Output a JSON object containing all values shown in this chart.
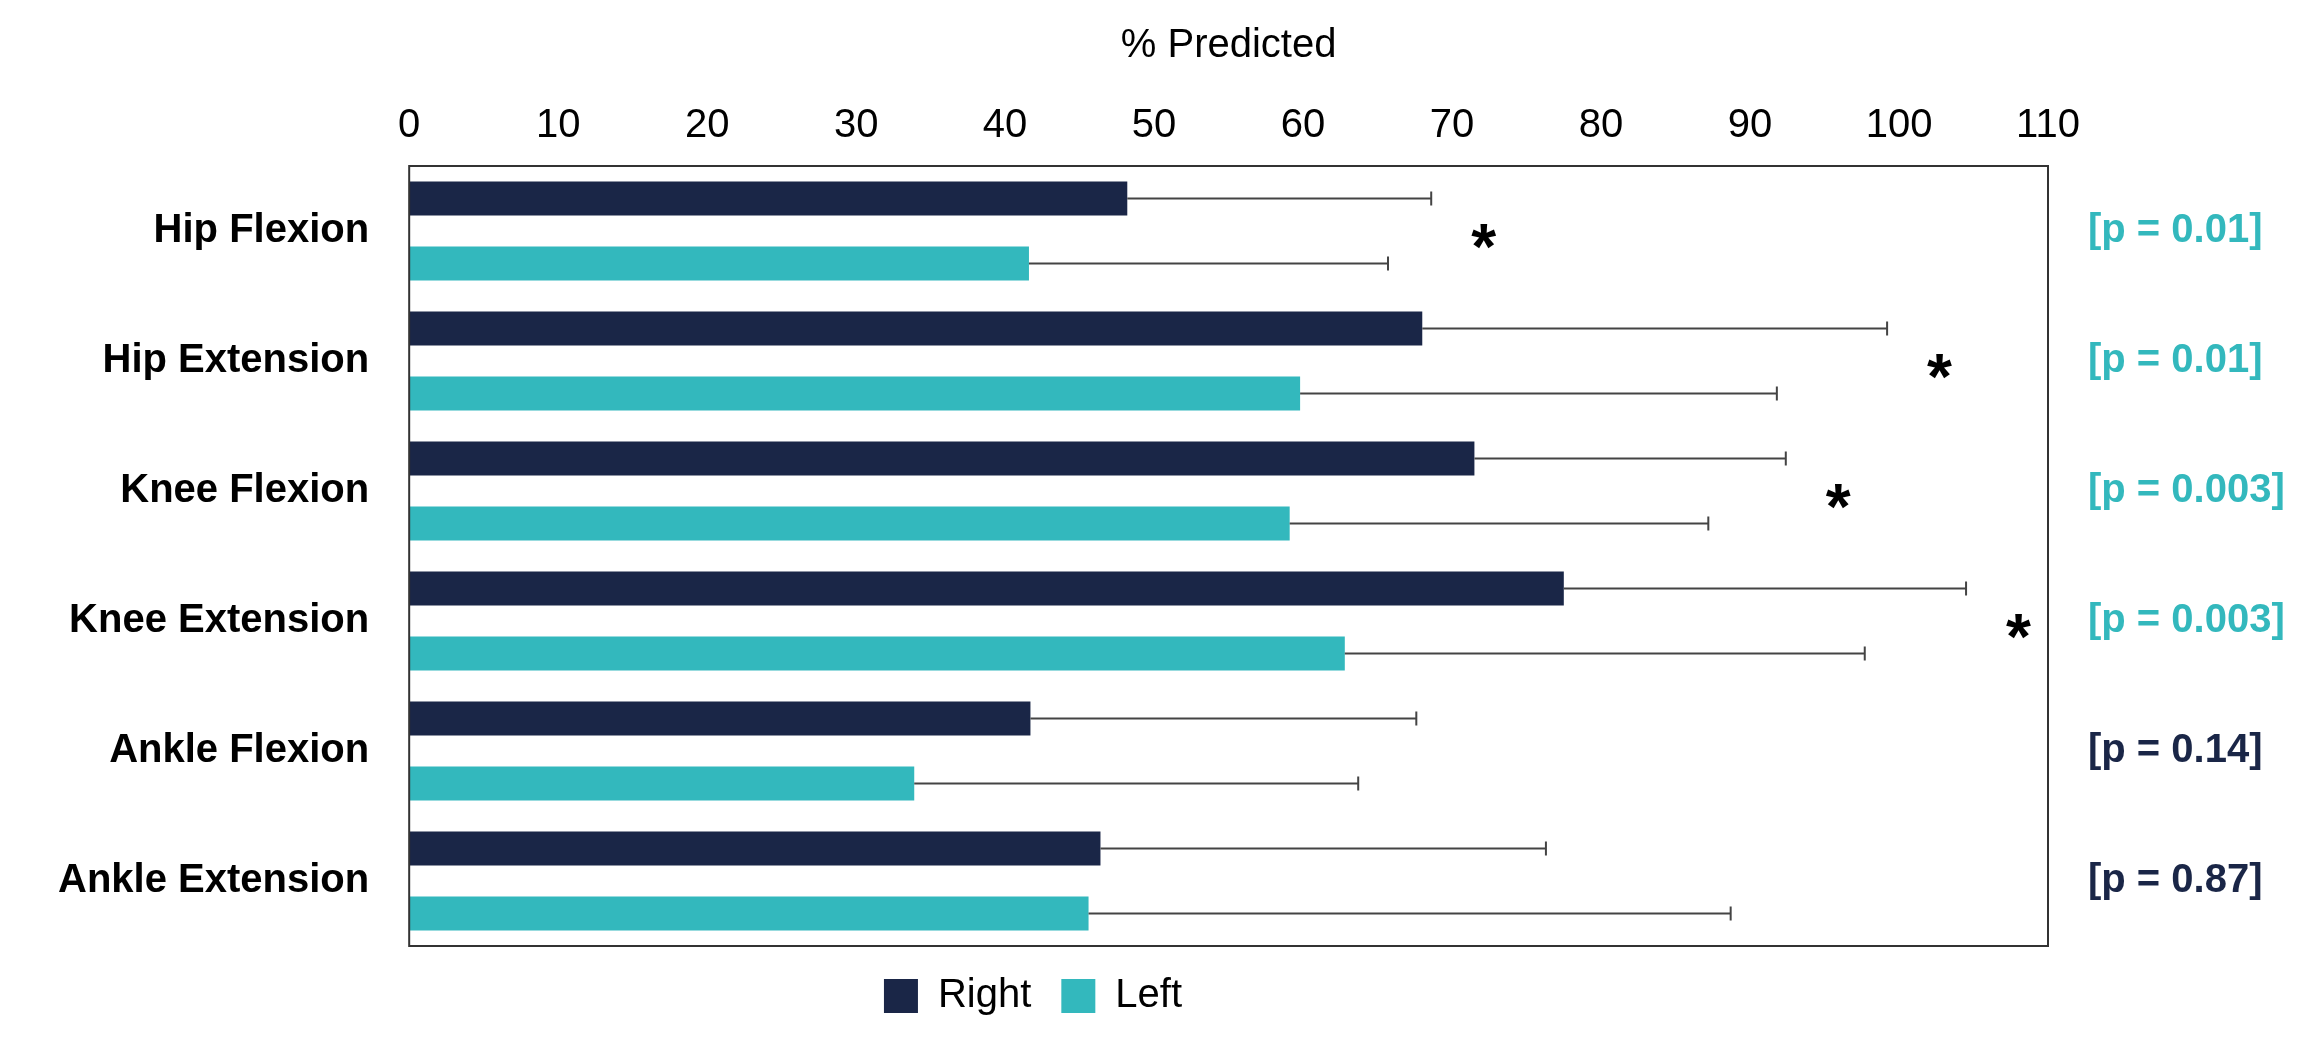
{
  "chart_data": {
    "type": "bar",
    "orientation": "horizontal",
    "xlabel": "% Predicted",
    "categories": [
      "Hip Flexion",
      "Hip Extension",
      "Knee Flexion",
      "Knee Extension",
      "Ankle Flexion",
      "Ankle Extension"
    ],
    "series": [
      {
        "name": "Right",
        "color": "#1a2647",
        "values": [
          48.2,
          68.0,
          71.5,
          77.5,
          41.7,
          46.4
        ],
        "errors": [
          [
            48.2,
            68.6
          ],
          [
            68.0,
            99.2
          ],
          [
            71.5,
            92.4
          ],
          [
            77.5,
            104.5
          ],
          [
            41.7,
            67.6
          ],
          [
            46.4,
            76.3
          ]
        ]
      },
      {
        "name": "Left",
        "color": "#33b8bd",
        "values": [
          41.6,
          59.8,
          59.1,
          62.8,
          33.9,
          45.6
        ],
        "errors": [
          [
            41.6,
            65.7
          ],
          [
            59.8,
            91.8
          ],
          [
            59.1,
            87.2
          ],
          [
            62.8,
            97.7
          ],
          [
            33.9,
            63.7
          ],
          [
            45.6,
            88.7
          ]
        ]
      }
    ],
    "xlim": [
      0,
      110
    ],
    "xticks": [
      0,
      10,
      20,
      30,
      40,
      50,
      60,
      70,
      80,
      90,
      100,
      110
    ],
    "legend": "bottom",
    "grid": false,
    "annotations": [
      "[p = 0.01]",
      "[p = 0.01]",
      "[p = 0.003]",
      "[p = 0.003]",
      "[p = 0.14]",
      "[p = 0.87]",
      "*",
      "*",
      "*",
      "*"
    ]
  }
}
